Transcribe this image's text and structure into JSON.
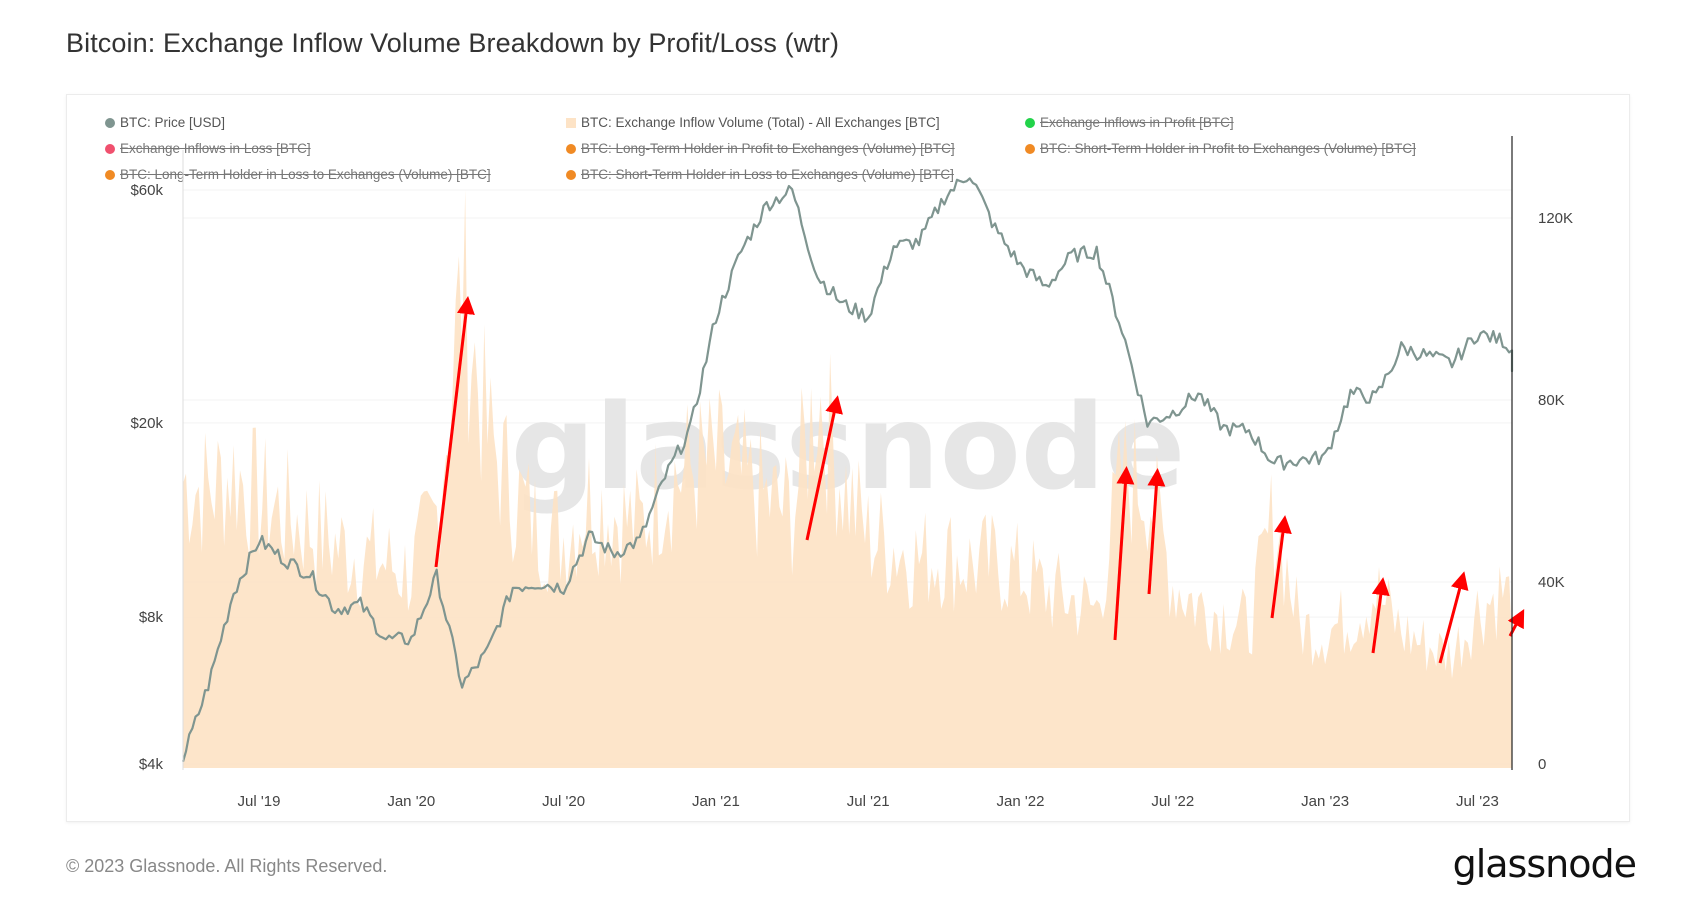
{
  "header": {
    "title": "Bitcoin: Exchange Inflow Volume Breakdown by Profit/Loss (wtr)"
  },
  "legend": [
    {
      "label": "BTC: Price [USD]",
      "color": "#7f9590",
      "active": true,
      "marker": "dot"
    },
    {
      "label": "BTC: Exchange Inflow Volume (Total) - All Exchanges [BTC]",
      "color": "#fde3c6",
      "active": true,
      "marker": "square"
    },
    {
      "label": "Exchange Inflows in Profit [BTC]",
      "color": "#22d34a",
      "active": false,
      "marker": "dot"
    },
    {
      "label": "Exchange Inflows in Loss [BTC]",
      "color": "#f0506e",
      "active": false,
      "marker": "dot"
    },
    {
      "label": "BTC: Long-Term Holder in Profit to Exchanges (Volume) [BTC]",
      "color": "#f08a24",
      "active": false,
      "marker": "dot"
    },
    {
      "label": "BTC: Short-Term Holder in Profit to Exchanges (Volume) [BTC]",
      "color": "#f08a24",
      "active": false,
      "marker": "dot"
    },
    {
      "label": "BTC: Long-Term Holder in Loss to Exchanges (Volume) [BTC]",
      "color": "#f08a24",
      "active": false,
      "marker": "dot"
    },
    {
      "label": "BTC: Short-Term Holder in Loss to Exchanges (Volume) [BTC]",
      "color": "#f08a24",
      "active": false,
      "marker": "dot"
    }
  ],
  "watermark": "glassnode",
  "footer": {
    "copyright": "© 2023 Glassnode. All Rights Reserved.",
    "brand": "glassnode"
  },
  "chart_data": {
    "type": "line",
    "title": "Bitcoin: Exchange Inflow Volume Breakdown by Profit/Loss (wtr)",
    "xlabel": "",
    "x_range": [
      "2019-04",
      "2023-09"
    ],
    "x_ticks": [
      "Jul '19",
      "Jan '20",
      "Jul '20",
      "Jan '21",
      "Jul '21",
      "Jan '22",
      "Jul '22",
      "Jan '23",
      "Jul '23"
    ],
    "y_left": {
      "label": "BTC: Price [USD]",
      "scale": "log",
      "range": [
        4000,
        70000
      ],
      "ticks": [
        "$4k",
        "$8k",
        "$20k",
        "$60k"
      ],
      "tick_values": [
        4000,
        8000,
        20000,
        60000
      ]
    },
    "y_right": {
      "label": "Exchange Inflow Volume [BTC]",
      "scale": "linear",
      "range": [
        0,
        135000
      ],
      "ticks": [
        "0",
        "40K",
        "80K",
        "120K"
      ],
      "tick_values": [
        0,
        40000,
        80000,
        120000
      ]
    },
    "grid": true,
    "legend_position": "top",
    "x": [
      "2019-04",
      "2019-05",
      "2019-06",
      "2019-07",
      "2019-08",
      "2019-09",
      "2019-10",
      "2019-11",
      "2019-12",
      "2020-01",
      "2020-02",
      "2020-03",
      "2020-04",
      "2020-05",
      "2020-06",
      "2020-07",
      "2020-08",
      "2020-09",
      "2020-10",
      "2020-11",
      "2020-12",
      "2021-01",
      "2021-02",
      "2021-03",
      "2021-04",
      "2021-05",
      "2021-06",
      "2021-07",
      "2021-08",
      "2021-09",
      "2021-10",
      "2021-11",
      "2021-12",
      "2022-01",
      "2022-02",
      "2022-03",
      "2022-04",
      "2022-05",
      "2022-06",
      "2022-07",
      "2022-08",
      "2022-09",
      "2022-10",
      "2022-11",
      "2022-12",
      "2023-01",
      "2023-02",
      "2023-03",
      "2023-04",
      "2023-05",
      "2023-06",
      "2023-07",
      "2023-08",
      "2023-09"
    ],
    "series": [
      {
        "name": "BTC: Price [USD]",
        "axis": "left",
        "color": "#7f9590",
        "values": [
          4100,
          5800,
          9000,
          11500,
          10500,
          9800,
          8300,
          8500,
          7200,
          7200,
          9700,
          5800,
          6800,
          9200,
          9400,
          9200,
          11700,
          10800,
          11500,
          15500,
          19500,
          33000,
          45000,
          56000,
          60000,
          40000,
          35000,
          33000,
          46000,
          47000,
          58000,
          65000,
          50000,
          42000,
          38000,
          44000,
          45000,
          31000,
          20000,
          21000,
          23000,
          19500,
          19300,
          16500,
          16800,
          17000,
          23000,
          22500,
          28500,
          27500,
          26500,
          30500,
          29500,
          26000
        ]
      },
      {
        "name": "BTC: Exchange Inflow Volume (Total) - All Exchanges [BTC]",
        "axis": "right",
        "color": "#fde3c6",
        "values": [
          62000,
          60000,
          64000,
          58000,
          55000,
          52000,
          48000,
          46000,
          44000,
          42000,
          55000,
          105000,
          72000,
          60000,
          52000,
          50000,
          58000,
          55000,
          52000,
          62000,
          65000,
          66000,
          62000,
          58000,
          55000,
          82000,
          62000,
          50000,
          48000,
          45000,
          46000,
          44000,
          44000,
          42000,
          38000,
          36000,
          34000,
          63000,
          62000,
          40000,
          35000,
          33000,
          30000,
          55000,
          30000,
          29000,
          32000,
          38000,
          29000,
          26000,
          24000,
          34000,
          38000,
          30000
        ]
      }
    ],
    "annotations": [
      {
        "type": "arrow",
        "color": "#ff0000",
        "points_to": "2020-03 volume spike"
      },
      {
        "type": "arrow",
        "color": "#ff0000",
        "points_to": "2021-05 volume spike"
      },
      {
        "type": "arrow",
        "color": "#ff0000",
        "points_to": "2022-05 volume spike"
      },
      {
        "type": "arrow",
        "color": "#ff0000",
        "points_to": "2022-06 volume spike"
      },
      {
        "type": "arrow",
        "color": "#ff0000",
        "points_to": "2022-11 volume spike"
      },
      {
        "type": "arrow",
        "color": "#ff0000",
        "points_to": "2023-03 volume spike"
      },
      {
        "type": "arrow",
        "color": "#ff0000",
        "points_to": "2023-06 volume spike"
      },
      {
        "type": "arrow",
        "color": "#ff0000",
        "points_to": "2023-08 volume spike"
      }
    ]
  }
}
